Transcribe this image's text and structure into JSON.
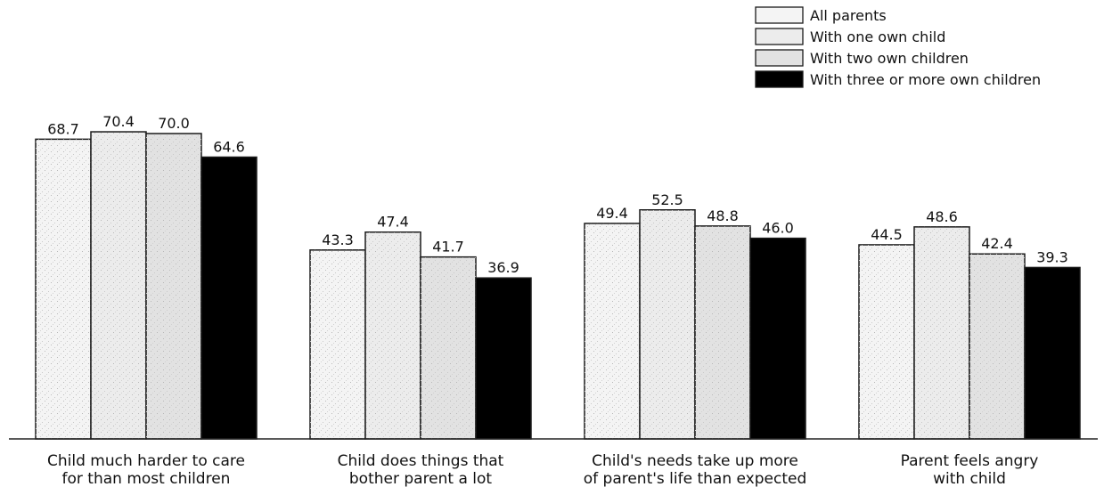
{
  "chart_data": {
    "type": "bar",
    "title": "",
    "xlabel": "",
    "ylabel": "",
    "ylim": [
      0,
      80
    ],
    "grid": false,
    "legend_position": "top-right",
    "categories": [
      [
        "Child much harder to care",
        "for than most children"
      ],
      [
        "Child does things that",
        "bother parent a lot"
      ],
      [
        "Child's needs take up more",
        "of parent's life than expected"
      ],
      [
        "Parent feels angry",
        "with child"
      ]
    ],
    "series": [
      {
        "name": "All parents",
        "values": [
          68.7,
          43.3,
          49.4,
          44.5
        ],
        "labels": [
          "68.7",
          "43.3",
          "49.4",
          "44.5"
        ],
        "color": "#f4f4f4"
      },
      {
        "name": "With one own child",
        "values": [
          70.4,
          47.4,
          52.5,
          48.6
        ],
        "labels": [
          "70.4",
          "47.4",
          "52.5",
          "48.6"
        ],
        "color": "#ececec"
      },
      {
        "name": "With two own children",
        "values": [
          70.0,
          41.7,
          48.8,
          42.4
        ],
        "labels": [
          "70.0",
          "41.7",
          "48.8",
          "42.4"
        ],
        "color": "#e2e2e2"
      },
      {
        "name": "With three or more own children",
        "values": [
          64.6,
          36.9,
          46.0,
          39.3
        ],
        "labels": [
          "64.6",
          "36.9",
          "46.0",
          "39.3"
        ],
        "color": "#000000"
      }
    ]
  }
}
